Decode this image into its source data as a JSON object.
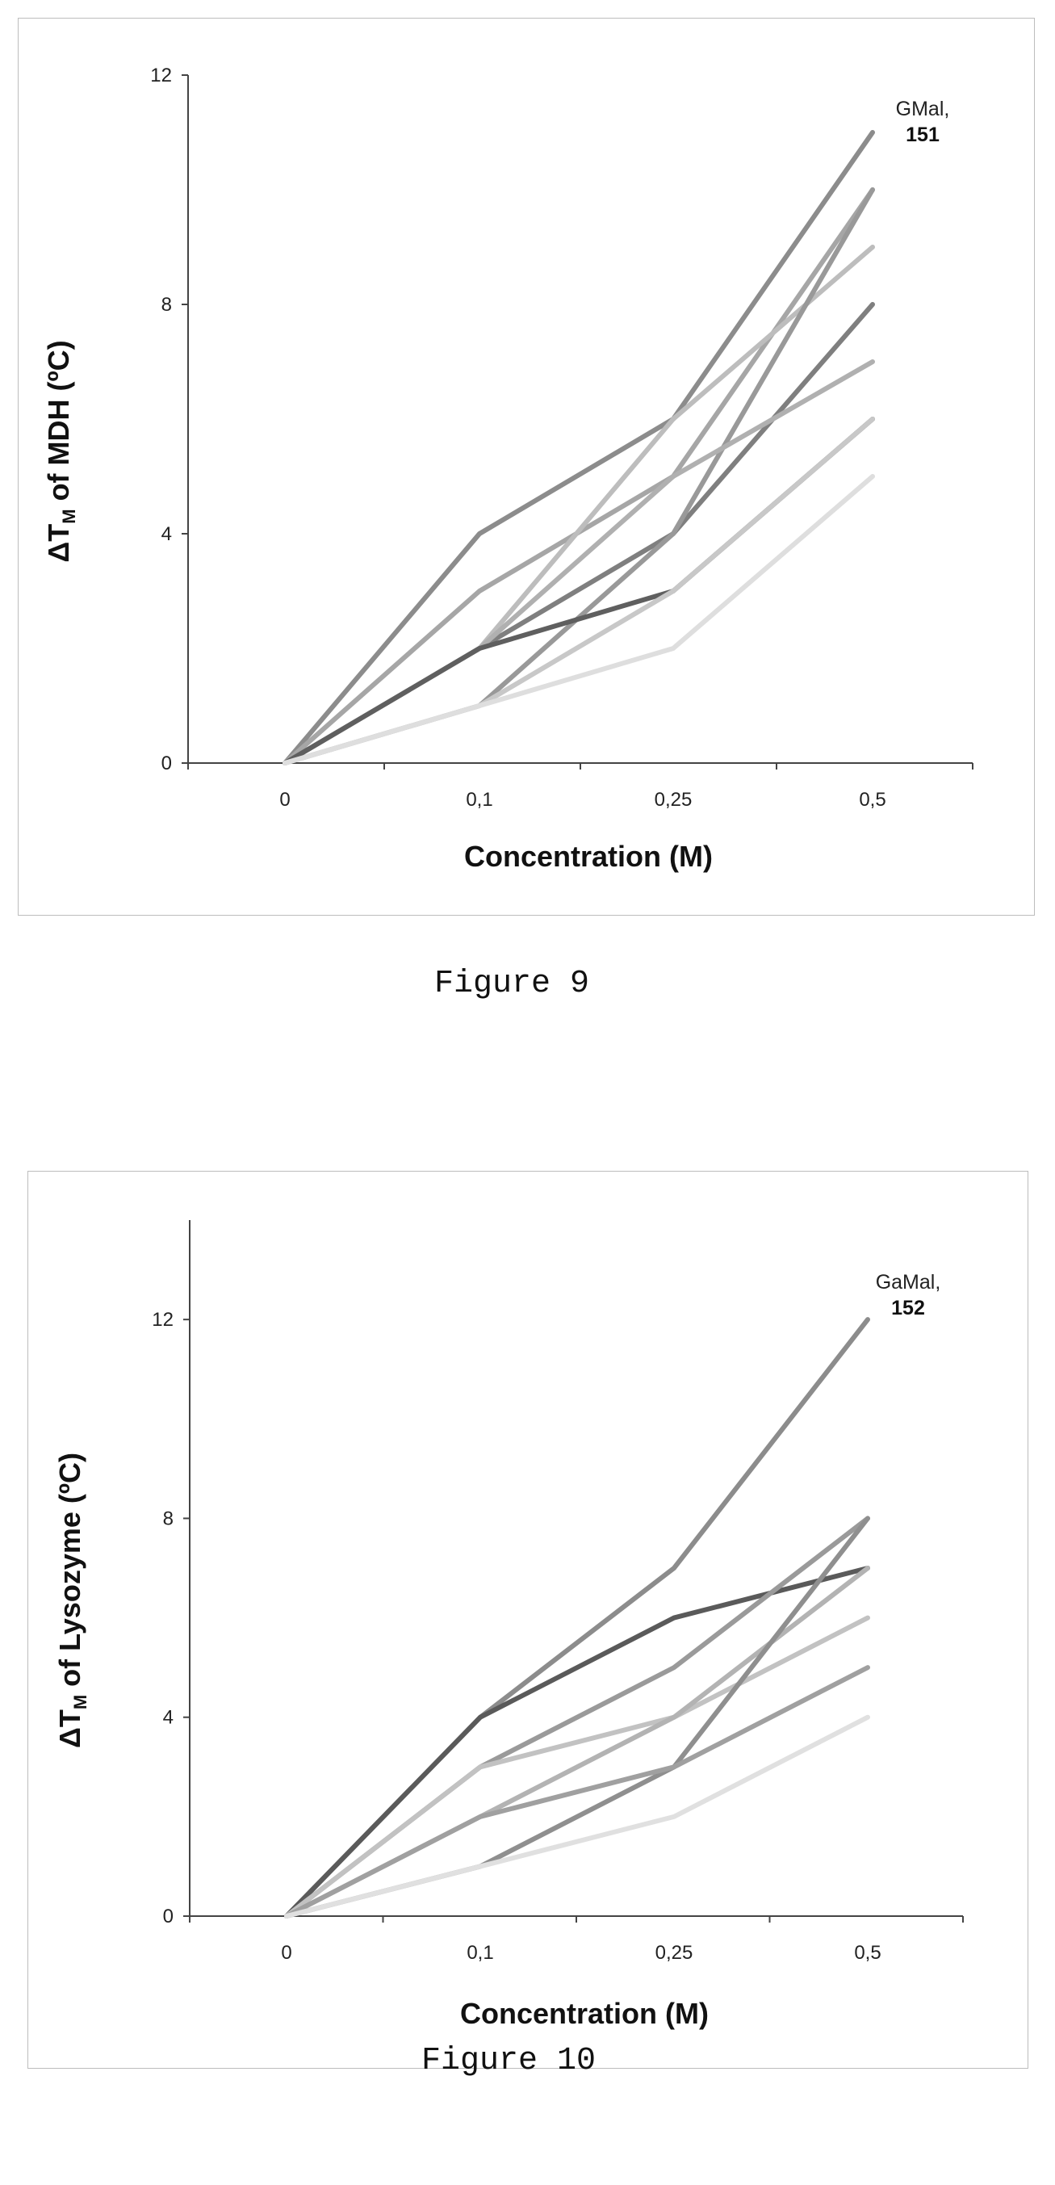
{
  "captions": [
    "Figure 9",
    "Figure 10"
  ],
  "chart_data": [
    {
      "type": "line",
      "ylabel_main": "ΔT",
      "ylabel_sub": "M",
      "ylabel_rest": " of MDH (ºC)",
      "xlabel": "Concentration (M)",
      "categories": [
        "0",
        "0,1",
        "0,25",
        "0,5"
      ],
      "ylim": [
        0,
        12
      ],
      "yticks": [
        "0",
        "4",
        "8",
        "12"
      ],
      "annotation": {
        "name": "GMal,",
        "number": "151"
      },
      "series": [
        {
          "color": "#8c8c8c",
          "values": [
            0,
            4,
            6,
            11
          ]
        },
        {
          "color": "#a6a6a6",
          "values": [
            0,
            3,
            5,
            10
          ]
        },
        {
          "color": "#bdbdbd",
          "values": [
            0,
            2,
            6,
            9
          ]
        },
        {
          "color": "#7f7f7f",
          "values": [
            0,
            2,
            4,
            8
          ]
        },
        {
          "color": "#999999",
          "values": [
            0,
            1,
            4,
            10
          ]
        },
        {
          "color": "#b0b0b0",
          "values": [
            0,
            2,
            5,
            7
          ]
        },
        {
          "color": "#5f5f5f",
          "values": [
            0,
            2,
            3,
            6
          ]
        },
        {
          "color": "#c8c8c8",
          "values": [
            0,
            1,
            3,
            6
          ]
        },
        {
          "color": "#dedede",
          "values": [
            0,
            1,
            2,
            5
          ]
        }
      ]
    },
    {
      "type": "line",
      "ylabel_main": "ΔT",
      "ylabel_sub": "M",
      "ylabel_rest": " of Lysozyme (ºC)",
      "xlabel": "Concentration (M)",
      "categories": [
        "0",
        "0,1",
        "0,25",
        "0,5"
      ],
      "ylim": [
        0,
        14
      ],
      "yticks": [
        "0",
        "4",
        "8",
        "12"
      ],
      "ytick_values": [
        0,
        4,
        8,
        12
      ],
      "annotation": {
        "name": "GaMal,",
        "number": "152"
      },
      "series": [
        {
          "color": "#8c8c8c",
          "values": [
            0,
            4,
            7,
            12
          ]
        },
        {
          "color": "#5a5a5a",
          "values": [
            0,
            4,
            6,
            7
          ]
        },
        {
          "color": "#9a9a9a",
          "values": [
            0,
            3,
            5,
            8
          ]
        },
        {
          "color": "#c2c2c2",
          "values": [
            0,
            3,
            4,
            6
          ]
        },
        {
          "color": "#b3b3b3",
          "values": [
            0,
            2,
            4,
            7
          ]
        },
        {
          "color": "#8f8f8f",
          "values": [
            0,
            1,
            3,
            8
          ]
        },
        {
          "color": "#a0a0a0",
          "values": [
            0,
            2,
            3,
            5
          ]
        },
        {
          "color": "#e0e0e0",
          "values": [
            0,
            1,
            2,
            4
          ]
        }
      ]
    }
  ]
}
